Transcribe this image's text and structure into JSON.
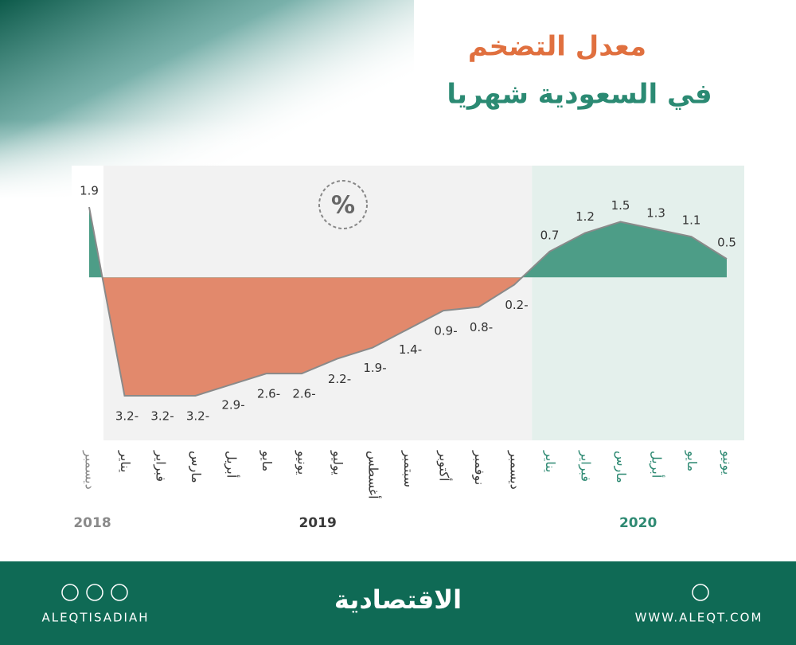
{
  "chart_data": {
    "type": "area",
    "title": "معدل التضخم",
    "subtitle": "في السعودية شهريا",
    "unit": "%",
    "positive_color": "#4d9d87",
    "negative_color": "#e2896c",
    "line_color": "#8a8a8a",
    "groups": [
      {
        "name": "2018",
        "color": "#8a8a8a",
        "panel": "#ffffff",
        "categories": [
          "ديسمبر"
        ],
        "values": [
          1.9
        ],
        "value_labels": [
          "1.9"
        ]
      },
      {
        "name": "2019",
        "color": "#3a3a3a",
        "panel": "#f2f2f2",
        "categories": [
          "يناير",
          "فبراير",
          "مارس",
          "أبريل",
          "مايو",
          "يونيو",
          "يوليو",
          "أغسطس",
          "سبتمبر",
          "أكتوبر",
          "نوفمبر",
          "ديسمبر"
        ],
        "values": [
          -3.2,
          -3.2,
          -3.2,
          -2.9,
          -2.6,
          -2.6,
          -2.2,
          -1.9,
          -1.4,
          -0.9,
          -0.8,
          -0.2
        ],
        "value_labels": [
          "3.2-",
          "3.2-",
          "3.2-",
          "2.9-",
          "2.6-",
          "2.6-",
          "2.2-",
          "1.9-",
          "1.4-",
          "0.9-",
          "0.8-",
          "0.2-"
        ]
      },
      {
        "name": "2020",
        "color": "#2f8a73",
        "panel": "#e4f0ec",
        "categories": [
          "يناير",
          "فبراير",
          "مارس",
          "أبريل",
          "مايو",
          "يونيو"
        ],
        "values": [
          0.7,
          1.2,
          1.5,
          1.3,
          1.1,
          0.5
        ],
        "value_labels": [
          "0.7",
          "1.2",
          "1.5",
          "1.3",
          "1.1",
          "0.5"
        ]
      }
    ]
  },
  "footer": {
    "social": "ALEQTISADIAH",
    "brand": "الاقتصادية",
    "website": "WWW.ALEQT.COM"
  }
}
